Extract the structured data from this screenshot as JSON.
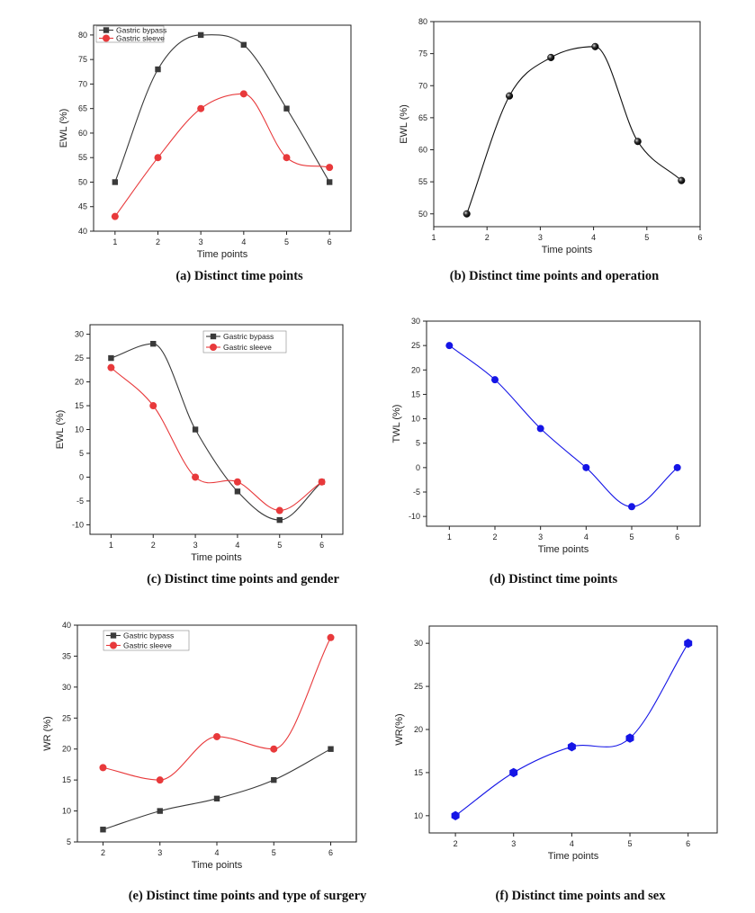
{
  "chart_data": [
    {
      "id": "a",
      "type": "line",
      "caption": "(a) Distinct time points",
      "xlabel": "Time points",
      "ylabel": "EWL (%)",
      "xlim": [
        0.5,
        6.5
      ],
      "ylim": [
        40,
        82
      ],
      "xticks": [
        1,
        2,
        3,
        4,
        5,
        6
      ],
      "yticks": [
        40,
        45,
        50,
        55,
        60,
        65,
        70,
        75,
        80
      ],
      "legend": "top-left",
      "series": [
        {
          "name": "Gastric bypass",
          "color": "#3a3a3a",
          "marker": "square",
          "x": [
            1,
            2,
            3,
            4,
            5,
            6
          ],
          "y": [
            50,
            73,
            80,
            78,
            65,
            50
          ]
        },
        {
          "name": "Gastric sleeve",
          "color": "#e8393b",
          "marker": "circle",
          "x": [
            1,
            2,
            3,
            4,
            5,
            6
          ],
          "y": [
            43,
            55,
            65,
            68,
            55,
            53
          ]
        }
      ]
    },
    {
      "id": "b",
      "type": "line",
      "caption": "(b) Distinct time points and operation",
      "xlabel": "Time points",
      "ylabel": "EWL (%)",
      "xlim": [
        1,
        6
      ],
      "ylim": [
        48,
        80
      ],
      "xticks": [
        1,
        2,
        3,
        4,
        5,
        6
      ],
      "yticks": [
        50,
        55,
        60,
        65,
        70,
        75,
        80
      ],
      "series": [
        {
          "color": "#111111",
          "marker": "sphere",
          "x": [
            1.62,
            2.42,
            3.2,
            4.03,
            4.83,
            5.65
          ],
          "y": [
            50,
            68.4,
            74.4,
            76.1,
            61.3,
            55.2
          ]
        }
      ]
    },
    {
      "id": "c",
      "type": "line",
      "caption": "(c) Distinct time points and gender",
      "xlabel": "Time points",
      "ylabel": "EWL (%)",
      "xlim": [
        0.5,
        6.5
      ],
      "ylim": [
        -12,
        32
      ],
      "xticks": [
        1,
        2,
        3,
        4,
        5,
        6
      ],
      "yticks": [
        -10,
        -5,
        0,
        5,
        10,
        15,
        20,
        25,
        30
      ],
      "legend": "top-right",
      "series": [
        {
          "name": "Gastric bypass",
          "color": "#3a3a3a",
          "marker": "square",
          "x": [
            1,
            2,
            3,
            4,
            5,
            6
          ],
          "y": [
            25,
            28,
            10,
            -3,
            -9,
            -1
          ]
        },
        {
          "name": "Gastric sleeve",
          "color": "#e8393b",
          "marker": "circle",
          "x": [
            1,
            2,
            3,
            4,
            5,
            6
          ],
          "y": [
            23,
            15,
            0,
            -1,
            -7,
            -1
          ]
        }
      ]
    },
    {
      "id": "d",
      "type": "line",
      "caption": "(d) Distinct time points",
      "xlabel": "Time points",
      "ylabel": "TWL (%)",
      "xlim": [
        0.5,
        6.5
      ],
      "ylim": [
        -12,
        30
      ],
      "xticks": [
        1,
        2,
        3,
        4,
        5,
        6
      ],
      "yticks": [
        -10,
        -5,
        0,
        5,
        10,
        15,
        20,
        25,
        30
      ],
      "series": [
        {
          "color": "#1515e6",
          "marker": "circle",
          "x": [
            1,
            2,
            3,
            4,
            5,
            6
          ],
          "y": [
            25,
            18,
            8,
            0,
            -8,
            0
          ]
        }
      ]
    },
    {
      "id": "e",
      "type": "line",
      "caption": "(e) Distinct time points and type of surgery",
      "xlabel": "Time points",
      "ylabel": "WR (%)",
      "xlim": [
        1.55,
        6.45
      ],
      "ylim": [
        5,
        40
      ],
      "xticks": [
        2,
        3,
        4,
        5,
        6
      ],
      "yticks": [
        5,
        10,
        15,
        20,
        25,
        30,
        35,
        40
      ],
      "legend": "top-left",
      "series": [
        {
          "name": "Gastric bypass",
          "color": "#3a3a3a",
          "marker": "square",
          "x": [
            2,
            3,
            4,
            5,
            6
          ],
          "y": [
            7,
            10,
            12,
            15,
            20
          ]
        },
        {
          "name": "Gastric sleeve",
          "color": "#e8393b",
          "marker": "circle",
          "x": [
            2,
            3,
            4,
            5,
            6
          ],
          "y": [
            17,
            15,
            22,
            20,
            38
          ]
        }
      ]
    },
    {
      "id": "f",
      "type": "line",
      "caption": "(f) Distinct time points and sex",
      "xlabel": "Time points",
      "ylabel": "WR(%)",
      "xlim": [
        1.55,
        6.5
      ],
      "ylim": [
        8,
        32
      ],
      "xticks": [
        2,
        3,
        4,
        5,
        6
      ],
      "yticks": [
        10,
        15,
        20,
        25,
        30
      ],
      "series": [
        {
          "color": "#1515e6",
          "marker": "hexagon",
          "x": [
            2,
            3,
            4,
            5,
            6
          ],
          "y": [
            10,
            15,
            18,
            19,
            30
          ]
        }
      ]
    }
  ]
}
